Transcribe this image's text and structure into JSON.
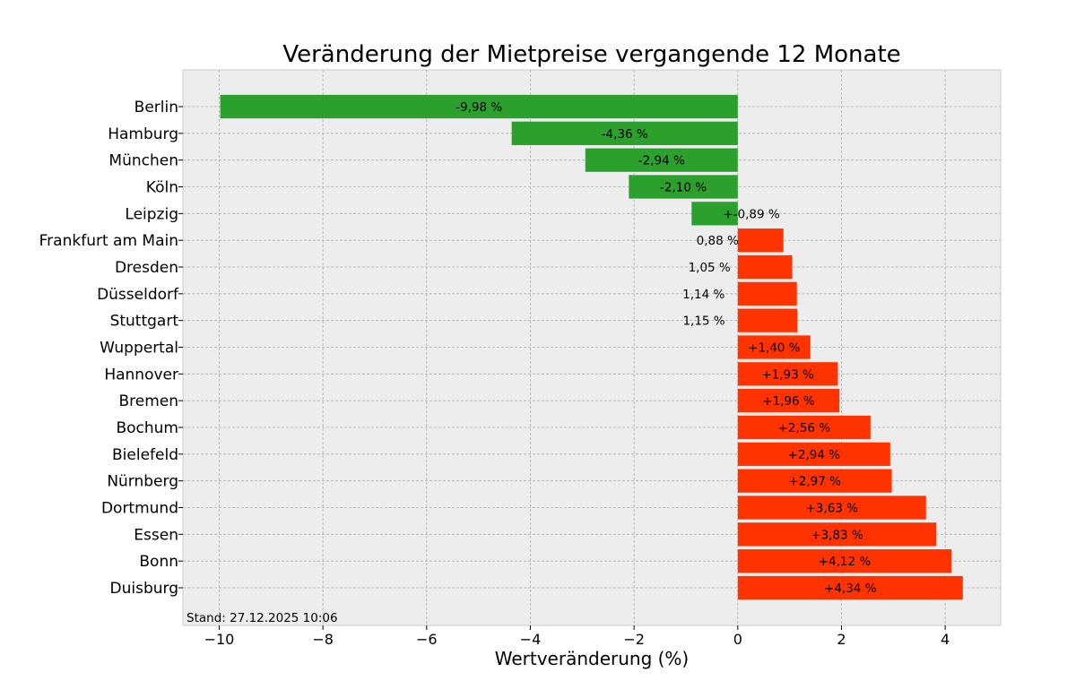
{
  "chart_data": {
    "type": "bar",
    "orientation": "horizontal",
    "title": "Veränderung der Mietpreise vergangende 12 Monate",
    "xlabel": "Wertveränderung (%)",
    "ylabel": "",
    "xlim": [
      -10.7,
      5.07
    ],
    "xticks": [
      -10,
      -8,
      -6,
      -4,
      -2,
      0,
      2,
      4
    ],
    "xtick_labels": [
      "−10",
      "−8",
      "−6",
      "−4",
      "−2",
      "0",
      "2",
      "4"
    ],
    "grid": true,
    "annotation": "Stand: 27.12.2025 10:06",
    "colors": {
      "negative": "#2ca02c",
      "positive": "#ff3300",
      "background": "#ededed"
    },
    "categories": [
      "Berlin",
      "Hamburg",
      "München",
      "Köln",
      "Leipzig",
      "Frankfurt am Main",
      "Dresden",
      "Düsseldorf",
      "Stuttgart",
      "Wuppertal",
      "Hannover",
      "Bremen",
      "Bochum",
      "Bielefeld",
      "Nürnberg",
      "Dortmund",
      "Essen",
      "Bonn",
      "Duisburg"
    ],
    "values": [
      -9.98,
      -4.36,
      -2.94,
      -2.1,
      -0.89,
      0.88,
      1.05,
      1.14,
      1.15,
      1.4,
      1.93,
      1.96,
      2.56,
      2.94,
      2.97,
      3.63,
      3.83,
      4.12,
      4.34
    ],
    "data_labels": [
      "-9,98 %",
      "-4,36 %",
      "-2,94 %",
      "-2,10 %",
      "+-0,89 %",
      "0,88 %",
      "1,05 %",
      "1,14 %",
      "1,15 %",
      "+1,40 %",
      "+1,93 %",
      "+1,96 %",
      "+2,56 %",
      "+2,94 %",
      "+2,97 %",
      "+3,63 %",
      "+3,83 %",
      "+4,12 %",
      "+4,34 %"
    ]
  }
}
